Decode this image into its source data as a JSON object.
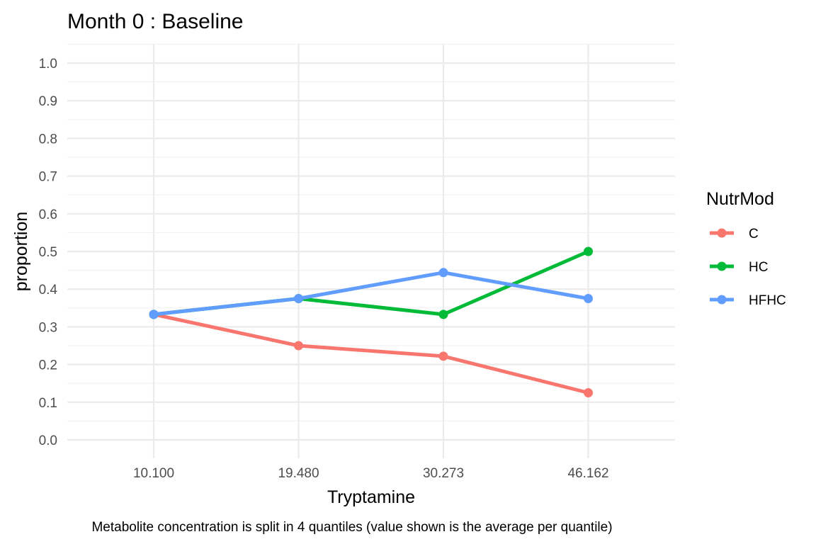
{
  "chart_data": {
    "type": "line",
    "title": "Month 0 : Baseline",
    "xlabel": "Tryptamine",
    "ylabel": "proportion",
    "caption": "Metabolite concentration is split in 4 quantiles (value shown is the average per quantile)",
    "categories": [
      "10.100",
      "19.480",
      "30.273",
      "46.162"
    ],
    "ylim": [
      0,
      1
    ],
    "yticks": [
      "0.0",
      "0.1",
      "0.2",
      "0.3",
      "0.4",
      "0.5",
      "0.6",
      "0.7",
      "0.8",
      "0.9",
      "1.0"
    ],
    "grid": true,
    "legend": {
      "title": "NutrMod",
      "position": "right"
    },
    "series": [
      {
        "name": "C",
        "color": "#F8766D",
        "values": [
          0.333,
          0.25,
          0.222,
          0.125
        ]
      },
      {
        "name": "HC",
        "color": "#00BA38",
        "values": [
          0.333,
          0.375,
          0.333,
          0.5
        ]
      },
      {
        "name": "HFHC",
        "color": "#619CFF",
        "values": [
          0.333,
          0.375,
          0.444,
          0.375
        ]
      }
    ]
  }
}
